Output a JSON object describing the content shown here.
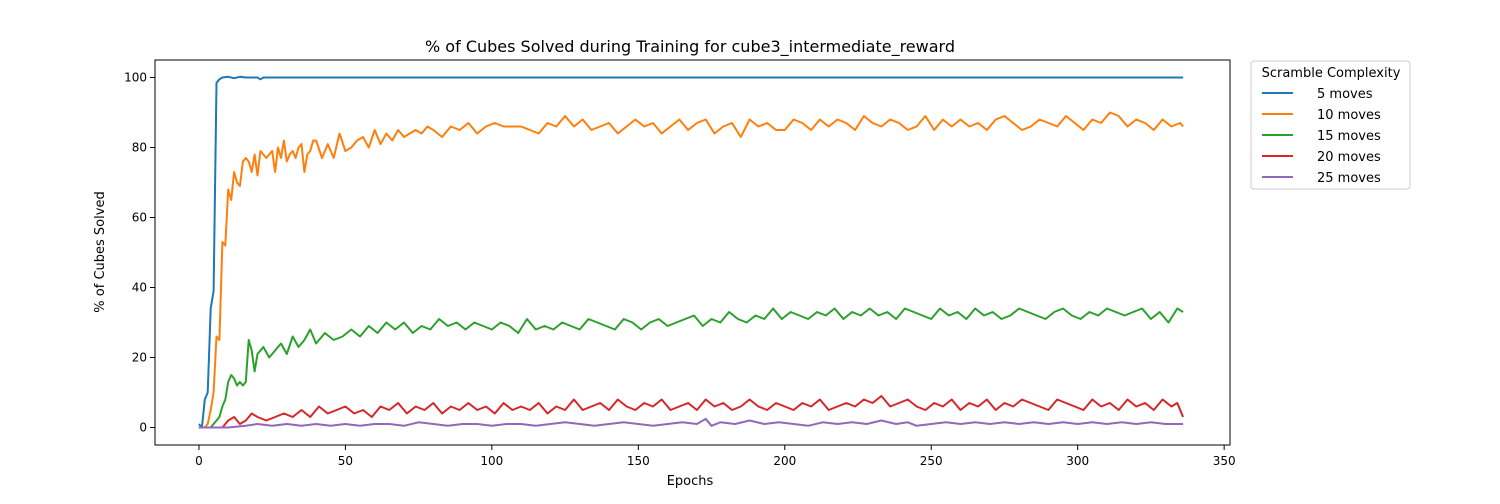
{
  "chart_data": {
    "type": "line",
    "title": "% of Cubes Solved during Training for cube3_intermediate_reward",
    "xlabel": "Epochs",
    "ylabel": "% of Cubes Solved",
    "xlim": [
      -15,
      352
    ],
    "ylim": [
      -5,
      105
    ],
    "xticks": [
      0,
      50,
      100,
      150,
      200,
      250,
      300,
      350
    ],
    "yticks": [
      0,
      20,
      40,
      60,
      80,
      100
    ],
    "grid": false,
    "legend": {
      "title": "Scramble Complexity",
      "placement": "outside-top-right"
    },
    "series": [
      {
        "name": "5 moves",
        "color": "#1f77b4",
        "x": [
          0,
          1,
          2,
          3,
          4,
          5,
          6,
          7,
          8,
          10,
          12,
          14,
          16,
          18,
          20,
          21,
          22,
          25,
          336
        ],
        "y": [
          1,
          0,
          8,
          10,
          34,
          39,
          98.5,
          99.5,
          100,
          100.2,
          99.8,
          100.2,
          100,
          100,
          100,
          99.5,
          100,
          100,
          100
        ]
      },
      {
        "name": "10 moves",
        "color": "#ff7f0e",
        "x": [
          0,
          1,
          2,
          3,
          4,
          5,
          6,
          7,
          8,
          9,
          10,
          11,
          12,
          13,
          14,
          15,
          16,
          17,
          18,
          19,
          20,
          21,
          22,
          23,
          24,
          25,
          26,
          27,
          28,
          29,
          30,
          31,
          32,
          33,
          34,
          35,
          36,
          37,
          38,
          39,
          40,
          42,
          44,
          46,
          48,
          50,
          52,
          54,
          56,
          58,
          60,
          62,
          64,
          66,
          68,
          70,
          72,
          74,
          76,
          78,
          80,
          83,
          86,
          89,
          92,
          95,
          98,
          101,
          104,
          107,
          110,
          113,
          116,
          119,
          122,
          125,
          128,
          131,
          134,
          137,
          140,
          143,
          146,
          149,
          152,
          155,
          158,
          161,
          164,
          167,
          170,
          173,
          176,
          179,
          182,
          185,
          188,
          191,
          194,
          197,
          200,
          203,
          206,
          209,
          212,
          215,
          218,
          221,
          224,
          227,
          230,
          233,
          236,
          239,
          242,
          245,
          248,
          251,
          254,
          257,
          260,
          263,
          266,
          269,
          272,
          275,
          278,
          281,
          284,
          287,
          290,
          293,
          296,
          299,
          302,
          305,
          308,
          311,
          314,
          317,
          320,
          323,
          326,
          329,
          332,
          335,
          336
        ],
        "y": [
          0,
          0,
          0,
          1,
          5,
          10,
          26,
          25,
          53,
          52,
          68,
          65,
          73,
          70,
          69,
          76,
          77,
          76,
          73,
          78,
          72,
          79,
          78,
          77,
          78,
          79,
          73,
          80,
          77,
          82,
          76,
          78,
          79,
          77,
          80,
          81,
          73,
          78,
          79,
          82,
          82,
          77,
          81,
          77,
          84,
          79,
          80,
          82,
          83,
          80,
          85,
          81,
          84,
          82,
          85,
          83,
          84,
          85,
          84,
          86,
          85,
          83,
          86,
          85,
          87,
          84,
          86,
          87,
          86,
          86,
          86,
          85,
          84,
          87,
          86,
          89,
          86,
          88,
          85,
          86,
          87,
          84,
          86,
          88,
          86,
          87,
          84,
          86,
          88,
          85,
          87,
          88,
          84,
          86,
          87,
          83,
          88,
          86,
          87,
          85,
          85,
          88,
          87,
          85,
          88,
          86,
          88,
          87,
          85,
          89,
          87,
          86,
          88,
          87,
          85,
          86,
          89,
          85,
          88,
          86,
          88,
          86,
          87,
          85,
          88,
          89,
          87,
          85,
          86,
          88,
          87,
          86,
          89,
          87,
          85,
          88,
          87,
          90,
          89,
          86,
          88,
          87,
          85,
          88,
          86,
          87,
          86
        ]
      },
      {
        "name": "15 moves",
        "color": "#2ca02c",
        "x": [
          0,
          2,
          4,
          5,
          6,
          7,
          8,
          9,
          10,
          11,
          12,
          13,
          14,
          15,
          16,
          17,
          18,
          19,
          20,
          22,
          24,
          26,
          28,
          30,
          32,
          34,
          36,
          38,
          40,
          43,
          46,
          49,
          52,
          55,
          58,
          61,
          64,
          67,
          70,
          73,
          76,
          79,
          82,
          85,
          88,
          91,
          94,
          97,
          100,
          103,
          106,
          109,
          112,
          115,
          118,
          121,
          124,
          127,
          130,
          133,
          136,
          139,
          142,
          145,
          148,
          151,
          154,
          157,
          160,
          163,
          166,
          169,
          172,
          175,
          178,
          181,
          184,
          187,
          190,
          193,
          196,
          199,
          202,
          205,
          208,
          211,
          214,
          217,
          220,
          223,
          226,
          229,
          232,
          235,
          238,
          241,
          244,
          247,
          250,
          253,
          256,
          259,
          262,
          265,
          268,
          271,
          274,
          277,
          280,
          283,
          286,
          289,
          292,
          295,
          298,
          301,
          304,
          307,
          310,
          313,
          316,
          319,
          322,
          325,
          328,
          331,
          334,
          336
        ],
        "y": [
          0,
          0,
          0,
          1,
          2,
          3,
          6,
          8,
          13,
          15,
          14,
          12,
          13,
          12,
          13,
          25,
          22,
          16,
          21,
          23,
          20,
          22,
          24,
          21,
          26,
          23,
          25,
          28,
          24,
          27,
          25,
          26,
          28,
          26,
          29,
          27,
          30,
          28,
          30,
          27,
          29,
          28,
          31,
          29,
          30,
          28,
          30,
          29,
          28,
          30,
          29,
          27,
          31,
          28,
          29,
          28,
          30,
          29,
          28,
          31,
          30,
          29,
          28,
          31,
          30,
          28,
          30,
          31,
          29,
          30,
          31,
          32,
          29,
          31,
          30,
          33,
          31,
          30,
          32,
          31,
          34,
          31,
          33,
          32,
          31,
          33,
          32,
          34,
          31,
          33,
          32,
          34,
          32,
          33,
          31,
          34,
          33,
          32,
          31,
          34,
          32,
          33,
          31,
          34,
          32,
          33,
          31,
          32,
          34,
          33,
          32,
          31,
          33,
          34,
          32,
          31,
          33,
          32,
          34,
          33,
          32,
          33,
          34,
          31,
          33,
          30,
          34,
          33
        ]
      },
      {
        "name": "20 moves",
        "color": "#d62728",
        "x": [
          0,
          4,
          8,
          10,
          12,
          14,
          16,
          18,
          20,
          23,
          26,
          29,
          32,
          35,
          38,
          41,
          44,
          47,
          50,
          53,
          56,
          59,
          62,
          65,
          68,
          71,
          74,
          77,
          80,
          83,
          86,
          89,
          92,
          95,
          98,
          101,
          104,
          107,
          110,
          113,
          116,
          119,
          122,
          125,
          128,
          131,
          134,
          137,
          140,
          143,
          146,
          149,
          152,
          155,
          158,
          161,
          164,
          167,
          170,
          173,
          176,
          179,
          182,
          185,
          188,
          191,
          194,
          197,
          200,
          203,
          206,
          209,
          212,
          215,
          218,
          221,
          224,
          227,
          230,
          233,
          236,
          239,
          242,
          245,
          248,
          251,
          254,
          257,
          260,
          263,
          266,
          269,
          272,
          275,
          278,
          281,
          284,
          287,
          290,
          293,
          296,
          299,
          302,
          305,
          308,
          311,
          314,
          317,
          320,
          323,
          326,
          329,
          332,
          334,
          336
        ],
        "y": [
          0,
          0,
          0,
          2,
          3,
          1,
          2,
          4,
          3,
          2,
          3,
          4,
          3,
          5,
          3,
          6,
          4,
          5,
          6,
          4,
          5,
          3,
          6,
          5,
          7,
          4,
          6,
          5,
          7,
          4,
          6,
          5,
          7,
          5,
          6,
          4,
          7,
          5,
          6,
          5,
          7,
          4,
          6,
          5,
          8,
          5,
          6,
          7,
          5,
          8,
          6,
          5,
          7,
          6,
          8,
          5,
          6,
          7,
          5,
          8,
          6,
          7,
          5,
          6,
          8,
          6,
          5,
          7,
          6,
          5,
          7,
          6,
          8,
          5,
          6,
          7,
          6,
          8,
          7,
          9,
          6,
          7,
          8,
          6,
          5,
          7,
          6,
          8,
          5,
          7,
          6,
          8,
          5,
          7,
          6,
          8,
          7,
          6,
          5,
          8,
          7,
          6,
          5,
          8,
          6,
          7,
          5,
          8,
          6,
          7,
          5,
          8,
          6,
          7,
          3
        ]
      },
      {
        "name": "25 moves",
        "color": "#9467bd",
        "x": [
          0,
          10,
          16,
          20,
          25,
          30,
          35,
          40,
          45,
          50,
          55,
          60,
          65,
          70,
          75,
          80,
          85,
          90,
          95,
          100,
          105,
          110,
          115,
          120,
          125,
          130,
          135,
          140,
          145,
          150,
          155,
          160,
          165,
          170,
          173,
          175,
          178,
          183,
          188,
          193,
          198,
          203,
          208,
          213,
          218,
          223,
          228,
          233,
          238,
          242,
          245,
          250,
          255,
          260,
          265,
          270,
          275,
          280,
          285,
          290,
          295,
          300,
          305,
          310,
          315,
          320,
          325,
          330,
          336
        ],
        "y": [
          0,
          0,
          0.5,
          1,
          0.5,
          1,
          0.5,
          1,
          0.5,
          1,
          0.5,
          1,
          1,
          0.5,
          1.5,
          1,
          0.5,
          1,
          1,
          0.5,
          1,
          1,
          0.5,
          1,
          1.5,
          1,
          0.5,
          1,
          1.5,
          1,
          0.5,
          1,
          1.5,
          1,
          2.5,
          0.5,
          1.5,
          1,
          2,
          1,
          1.5,
          1,
          0.5,
          1.5,
          1,
          1.5,
          1,
          2,
          1,
          1.5,
          0.5,
          1,
          1.5,
          1,
          1.5,
          1,
          1.5,
          1,
          1.5,
          1,
          1.5,
          1,
          1.5,
          1,
          1.5,
          1,
          1.5,
          1,
          1
        ]
      }
    ]
  }
}
